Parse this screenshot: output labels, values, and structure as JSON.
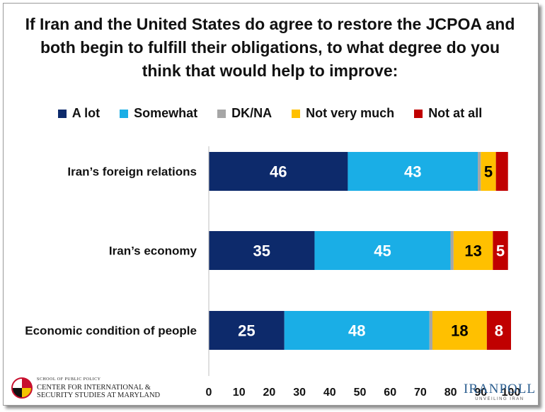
{
  "chart_data": {
    "type": "bar",
    "orientation": "horizontal",
    "stacked": true,
    "title": "If Iran and the United States do agree to restore the JCPOA and both begin to fulfill their obligations, to what degree do you think that would help to improve:",
    "title_lines": [
      "If Iran and the United States do agree to restore the JCPOA and",
      "both begin to fulfill their obligations, to what degree do you",
      "think that would help to improve:"
    ],
    "categories": [
      "Iran’s foreign relations",
      "Iran’s economy",
      "Economic condition of people"
    ],
    "series": [
      {
        "name": "A lot",
        "color": "#0d2a6b",
        "values": [
          46,
          35,
          25
        ],
        "labels": [
          "46",
          "35",
          "25"
        ]
      },
      {
        "name": "Somewhat",
        "color": "#1aaee6",
        "values": [
          43,
          45,
          48
        ],
        "labels": [
          "43",
          "45",
          "48"
        ]
      },
      {
        "name": "DK/NA",
        "color": "#a6a6a6",
        "values": [
          1,
          1,
          1
        ],
        "labels": [
          "",
          "",
          ""
        ]
      },
      {
        "name": "Not very much",
        "color": "#ffc000",
        "values": [
          5,
          13,
          18
        ],
        "labels": [
          "5",
          "13",
          "18"
        ]
      },
      {
        "name": "Not at all",
        "color": "#c00000",
        "values": [
          4,
          5,
          8
        ],
        "labels": [
          "",
          "5",
          "8"
        ]
      }
    ],
    "xlim": [
      0,
      100
    ],
    "xticks": [
      "0",
      "10",
      "20",
      "30",
      "40",
      "50",
      "60",
      "70",
      "80",
      "90",
      "100"
    ],
    "grid": false,
    "legend_position": "top"
  },
  "logos": {
    "left_small": "SCHOOL OF PUBLIC POLICY",
    "left_line1": "CENTER FOR INTERNATIONAL &",
    "left_line2": "SECURITY STUDIES AT MARYLAND",
    "right_name": "IRANPOLL",
    "right_tagline": "UNVEILING IRAN"
  }
}
